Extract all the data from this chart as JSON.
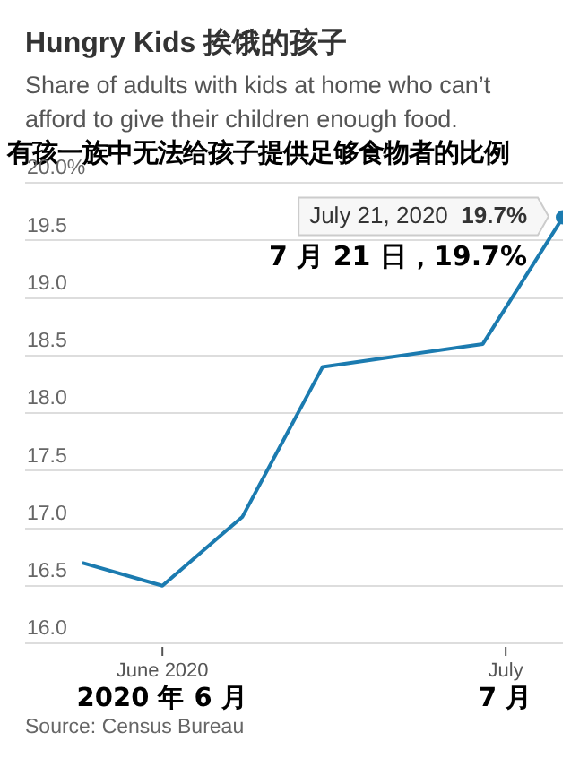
{
  "chart_data": {
    "type": "line",
    "title": "Hungry Kids  挨饿的孩子",
    "subtitle": "Share of adults with kids at home who can’t afford to give their children enough food.\n有孩一族中无法给孩子提供足够食物者的比例",
    "x": [
      "2020-05-25",
      "2020-06-01",
      "2020-06-08",
      "2020-06-15",
      "2020-06-29",
      "2020-07-06"
    ],
    "series": [
      {
        "color": "#1b7bb0",
        "values": [
          16.7,
          16.5,
          17.1,
          18.4,
          18.6,
          19.7
        ]
      }
    ],
    "xlim": [
      "2020-05-20",
      "2020-07-06"
    ],
    "xticks": [
      {
        "value": "2020-06-01",
        "label": "June 2020"
      },
      {
        "value": "2020-07-01",
        "label": "July"
      }
    ],
    "ylim": [
      16.0,
      20.0
    ],
    "yticks": [
      {
        "value": 16.0,
        "label": "16.0"
      },
      16.5,
      {
        "value": 17.0,
        "label": "17.0"
      },
      17.5,
      {
        "value": 18.0,
        "label": "18.0"
      },
      18.5,
      {
        "value": 19.0,
        "label": "19.0"
      },
      19.5,
      {
        "value": 20.0,
        "label": "20.0%"
      }
    ],
    "grid": "y",
    "line_style": "solid",
    "annotations": [
      "July 21, 2020 19.7%",
      "7 月 21 日，19.7%",
      "2020 年 6 月",
      "7 月",
      "Source: Census Bureau"
    ]
  }
}
